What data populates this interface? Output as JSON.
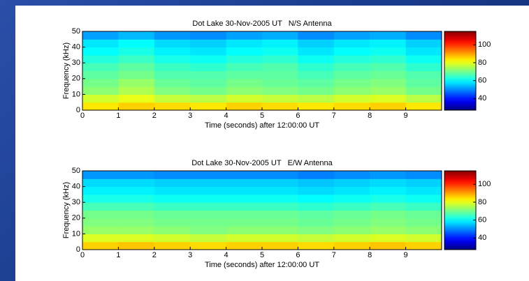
{
  "chart_data": [
    {
      "type": "spectrogram",
      "title": "Dot Lake 30-Nov-2005 UT   N/S Antenna",
      "x_label": "Time (seconds) after 12:00:00 UT",
      "y_label": "Frequency (kHz)",
      "xlim": [
        0,
        10
      ],
      "xticks": [
        0,
        1,
        2,
        3,
        4,
        5,
        6,
        7,
        8,
        9
      ],
      "ylim": [
        0,
        50
      ],
      "yticks": [
        0,
        10,
        20,
        30,
        40,
        50
      ],
      "clim": [
        27,
        115
      ],
      "cticks": [
        40,
        60,
        80,
        100
      ],
      "colormap": "jet",
      "z": [
        [
          84,
          86,
          85,
          84,
          86,
          85,
          84,
          85,
          86,
          84
        ],
        [
          78,
          80,
          77,
          76,
          78,
          77,
          76,
          78,
          79,
          76
        ],
        [
          72,
          75,
          71,
          70,
          72,
          71,
          70,
          72,
          73,
          70
        ],
        [
          70,
          73,
          69,
          68,
          70,
          69,
          68,
          70,
          71,
          68
        ],
        [
          68,
          70,
          67,
          67,
          68,
          68,
          66,
          68,
          69,
          67
        ],
        [
          66,
          68,
          65,
          64,
          66,
          67,
          64,
          66,
          67,
          64
        ],
        [
          63,
          65,
          62,
          61,
          63,
          64,
          61,
          63,
          64,
          61
        ],
        [
          60,
          62,
          59,
          58,
          60,
          61,
          58,
          60,
          61,
          58
        ],
        [
          58,
          60,
          57,
          56,
          58,
          59,
          56,
          58,
          59,
          56
        ],
        [
          52,
          54,
          51,
          50,
          52,
          53,
          50,
          52,
          53,
          50
        ]
      ]
    },
    {
      "type": "spectrogram",
      "title": "Dot Lake 30-Nov-2005 UT   E/W Antenna",
      "x_label": "Time (seconds) after 12:00:00 UT",
      "y_label": "Frequency (kHz)",
      "xlim": [
        0,
        10
      ],
      "xticks": [
        0,
        1,
        2,
        3,
        4,
        5,
        6,
        7,
        8,
        9
      ],
      "ylim": [
        0,
        50
      ],
      "yticks": [
        0,
        10,
        20,
        30,
        40,
        50
      ],
      "clim": [
        27,
        115
      ],
      "cticks": [
        40,
        60,
        80,
        100
      ],
      "colormap": "jet",
      "z": [
        [
          86,
          87,
          86,
          85,
          86,
          86,
          85,
          86,
          87,
          86
        ],
        [
          79,
          79,
          78,
          77,
          78,
          78,
          77,
          78,
          79,
          78
        ],
        [
          73,
          73,
          72,
          71,
          72,
          72,
          71,
          72,
          73,
          72
        ],
        [
          71,
          71,
          70,
          70,
          70,
          70,
          69,
          70,
          71,
          70
        ],
        [
          70,
          70,
          69,
          69,
          69,
          69,
          68,
          69,
          70,
          69
        ],
        [
          66,
          66,
          65,
          65,
          65,
          65,
          64,
          65,
          66,
          65
        ],
        [
          62,
          62,
          61,
          61,
          61,
          61,
          60,
          61,
          62,
          61
        ],
        [
          59,
          59,
          58,
          58,
          58,
          58,
          57,
          58,
          59,
          58
        ],
        [
          57,
          57,
          56,
          56,
          56,
          56,
          55,
          56,
          57,
          56
        ],
        [
          51,
          51,
          50,
          50,
          50,
          50,
          49,
          50,
          51,
          50
        ]
      ]
    }
  ]
}
